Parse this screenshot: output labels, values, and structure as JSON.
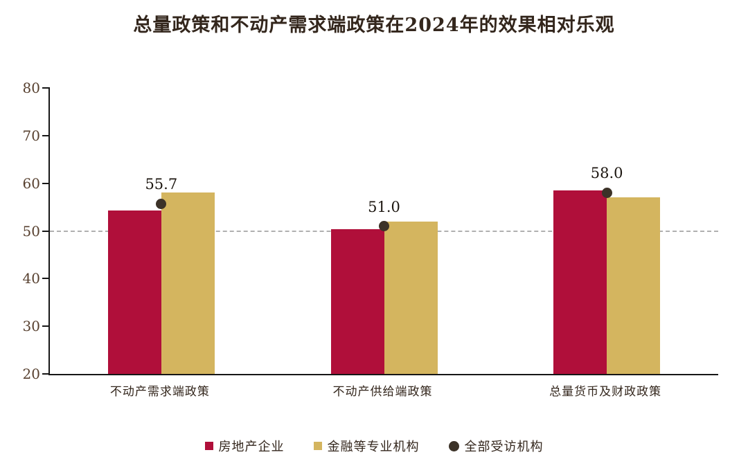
{
  "chart_data": {
    "type": "bar",
    "title": "总量政策和不动产需求端政策在2024年的效果相对乐观",
    "categories": [
      "不动产需求端政策",
      "不动产供给端政策",
      "总量货币及财政政策"
    ],
    "series": [
      {
        "name": "房地产企业",
        "type": "bar",
        "color": "#b00f3a",
        "values": [
          54.3,
          50.4,
          58.5
        ]
      },
      {
        "name": "金融等专业机构",
        "type": "bar",
        "color": "#d4b55f",
        "values": [
          58.1,
          52.0,
          57.0
        ]
      },
      {
        "name": "全部受访机构",
        "type": "point",
        "color": "#3c3228",
        "values": [
          55.7,
          51.0,
          58.0
        ],
        "labels": [
          "55.7",
          "51.0",
          "58.0"
        ]
      }
    ],
    "xlabel": "",
    "ylabel": "",
    "ylim": [
      20,
      80
    ],
    "yticks": [
      80,
      70,
      60,
      50,
      40,
      30,
      20
    ],
    "reference_line": 50,
    "grid": false,
    "legend_position": "bottom",
    "colors": {
      "axis": "#161616",
      "tick_text": "#57402f",
      "title_text": "#33261c",
      "reference_line": "#b0b0b0",
      "background": "#ffffff"
    }
  }
}
